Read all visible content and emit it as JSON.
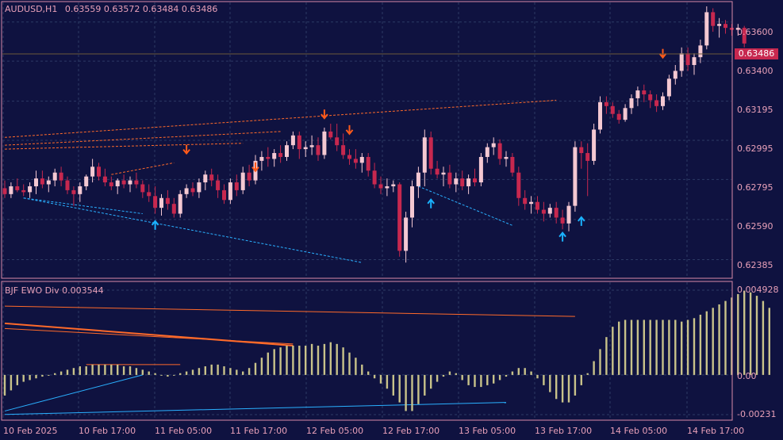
{
  "header": {
    "symbol_label": "AUDUSD,H1",
    "open": "0.63559",
    "high": "0.63572",
    "low": "0.63484",
    "close": "0.63486"
  },
  "current_price": "0.63486",
  "price_axis": [
    "0.63600",
    "0.63400",
    "0.63195",
    "0.62995",
    "0.62795",
    "0.62590",
    "0.62385"
  ],
  "indicator": {
    "label": "BJF EWO Div 0.003544",
    "axis": [
      "0.004928",
      "0.00",
      "-0.00231"
    ]
  },
  "time_axis": [
    "10 Feb 2025",
    "10 Feb 17:00",
    "11 Feb 05:00",
    "11 Feb 17:00",
    "12 Feb 05:00",
    "12 Feb 17:00",
    "13 Feb 05:00",
    "13 Feb 17:00",
    "14 Feb 05:00",
    "14 Feb 17:00"
  ],
  "colors": {
    "background": "#0f1240",
    "grid": "#2c3a64",
    "frame": "#d88aa8",
    "bull_candle": "#f4c8d2",
    "bear_candle": "#c7284f",
    "histogram": "#c8c28a",
    "sell_arrow": "#ff5a1a",
    "buy_arrow": "#1ab2ff",
    "bear_div_line": "#ff6a2a",
    "bull_div_line": "#2ab0ff"
  },
  "chart_data": {
    "type": "candlestick",
    "symbol": "AUDUSD",
    "timeframe": "H1",
    "ylim": [
      0.6231,
      0.6368
    ],
    "candles": [
      [
        0.6275,
        0.6279,
        0.627,
        0.6272
      ],
      [
        0.6272,
        0.6278,
        0.627,
        0.6276
      ],
      [
        0.6276,
        0.628,
        0.6273,
        0.6274
      ],
      [
        0.6274,
        0.6277,
        0.6271,
        0.6273
      ],
      [
        0.6273,
        0.6278,
        0.627,
        0.6276
      ],
      [
        0.6276,
        0.6284,
        0.6272,
        0.628
      ],
      [
        0.628,
        0.6284,
        0.6275,
        0.6277
      ],
      [
        0.6277,
        0.6281,
        0.6273,
        0.6279
      ],
      [
        0.6279,
        0.6285,
        0.6276,
        0.6283
      ],
      [
        0.6283,
        0.6286,
        0.6276,
        0.6279
      ],
      [
        0.6279,
        0.6281,
        0.6272,
        0.6274
      ],
      [
        0.6274,
        0.6276,
        0.6266,
        0.6272
      ],
      [
        0.6272,
        0.6278,
        0.6268,
        0.6276
      ],
      [
        0.6276,
        0.6282,
        0.6274,
        0.6281
      ],
      [
        0.6281,
        0.629,
        0.6278,
        0.6286
      ],
      [
        0.6286,
        0.6288,
        0.6279,
        0.6281
      ],
      [
        0.6281,
        0.6285,
        0.6276,
        0.6278
      ],
      [
        0.6278,
        0.6281,
        0.6274,
        0.6276
      ],
      [
        0.6276,
        0.628,
        0.6272,
        0.6279
      ],
      [
        0.6279,
        0.6282,
        0.6275,
        0.6277
      ],
      [
        0.6277,
        0.6281,
        0.6273,
        0.6279
      ],
      [
        0.6279,
        0.6283,
        0.6275,
        0.6277
      ],
      [
        0.6277,
        0.6279,
        0.627,
        0.6273
      ],
      [
        0.6273,
        0.6277,
        0.6268,
        0.6271
      ],
      [
        0.6271,
        0.6276,
        0.6262,
        0.6265
      ],
      [
        0.6265,
        0.6272,
        0.6261,
        0.627
      ],
      [
        0.627,
        0.6274,
        0.6264,
        0.6267
      ],
      [
        0.6267,
        0.627,
        0.626,
        0.6262
      ],
      [
        0.6262,
        0.6274,
        0.626,
        0.6272
      ],
      [
        0.6272,
        0.6277,
        0.627,
        0.6275
      ],
      [
        0.6275,
        0.6278,
        0.6271,
        0.6273
      ],
      [
        0.6273,
        0.628,
        0.627,
        0.6278
      ],
      [
        0.6278,
        0.6284,
        0.6274,
        0.6282
      ],
      [
        0.6282,
        0.6285,
        0.6276,
        0.6279
      ],
      [
        0.6279,
        0.6282,
        0.627,
        0.6274
      ],
      [
        0.6274,
        0.6277,
        0.6267,
        0.6269
      ],
      [
        0.6269,
        0.628,
        0.6267,
        0.6278
      ],
      [
        0.6278,
        0.6282,
        0.6271,
        0.6274
      ],
      [
        0.6274,
        0.6286,
        0.6272,
        0.6283
      ],
      [
        0.6283,
        0.6287,
        0.6276,
        0.6279
      ],
      [
        0.6279,
        0.6292,
        0.6277,
        0.6289
      ],
      [
        0.6289,
        0.6294,
        0.6284,
        0.6291
      ],
      [
        0.6291,
        0.6296,
        0.6286,
        0.629
      ],
      [
        0.629,
        0.6295,
        0.6286,
        0.6293
      ],
      [
        0.6293,
        0.6297,
        0.6288,
        0.6291
      ],
      [
        0.6291,
        0.6299,
        0.6289,
        0.6297
      ],
      [
        0.6297,
        0.6304,
        0.6295,
        0.6302
      ],
      [
        0.6302,
        0.6304,
        0.629,
        0.6295
      ],
      [
        0.6295,
        0.6299,
        0.6291,
        0.6296
      ],
      [
        0.6296,
        0.6302,
        0.6292,
        0.6297
      ],
      [
        0.6297,
        0.6301,
        0.6289,
        0.6292
      ],
      [
        0.6292,
        0.6306,
        0.629,
        0.6304
      ],
      [
        0.6304,
        0.6308,
        0.63,
        0.6301
      ],
      [
        0.6301,
        0.6308,
        0.6294,
        0.6297
      ],
      [
        0.6297,
        0.6303,
        0.629,
        0.6292
      ],
      [
        0.6292,
        0.6295,
        0.6287,
        0.629
      ],
      [
        0.629,
        0.6295,
        0.6285,
        0.6288
      ],
      [
        0.6288,
        0.6293,
        0.6283,
        0.6291
      ],
      [
        0.6291,
        0.6293,
        0.6281,
        0.6284
      ],
      [
        0.6284,
        0.6288,
        0.6275,
        0.6277
      ],
      [
        0.6277,
        0.6281,
        0.6272,
        0.6275
      ],
      [
        0.6275,
        0.628,
        0.6271,
        0.6276
      ],
      [
        0.6276,
        0.6279,
        0.6273,
        0.6277
      ],
      [
        0.6277,
        0.6278,
        0.624,
        0.6243
      ],
      [
        0.6243,
        0.6263,
        0.6237,
        0.626
      ],
      [
        0.626,
        0.6279,
        0.6255,
        0.6276
      ],
      [
        0.6276,
        0.6286,
        0.627,
        0.6283
      ],
      [
        0.6283,
        0.6305,
        0.6276,
        0.6301
      ],
      [
        0.6301,
        0.6304,
        0.6282,
        0.6285
      ],
      [
        0.6285,
        0.6289,
        0.628,
        0.6282
      ],
      [
        0.6282,
        0.6286,
        0.6276,
        0.6283
      ],
      [
        0.6283,
        0.6287,
        0.6275,
        0.6277
      ],
      [
        0.6277,
        0.6283,
        0.6273,
        0.628
      ],
      [
        0.628,
        0.6284,
        0.6274,
        0.6276
      ],
      [
        0.6276,
        0.6282,
        0.6272,
        0.628
      ],
      [
        0.628,
        0.6285,
        0.6276,
        0.6278
      ],
      [
        0.6278,
        0.6293,
        0.6276,
        0.6291
      ],
      [
        0.6291,
        0.6298,
        0.6288,
        0.6296
      ],
      [
        0.6296,
        0.6301,
        0.6292,
        0.6298
      ],
      [
        0.6298,
        0.63,
        0.6287,
        0.629
      ],
      [
        0.629,
        0.6294,
        0.6286,
        0.6291
      ],
      [
        0.6291,
        0.6293,
        0.6281,
        0.6283
      ],
      [
        0.6283,
        0.6286,
        0.6266,
        0.627
      ],
      [
        0.627,
        0.6274,
        0.6264,
        0.6267
      ],
      [
        0.6267,
        0.6271,
        0.6262,
        0.6268
      ],
      [
        0.6268,
        0.6271,
        0.6262,
        0.6264
      ],
      [
        0.6264,
        0.6268,
        0.6258,
        0.6262
      ],
      [
        0.6262,
        0.6267,
        0.626,
        0.6265
      ],
      [
        0.6265,
        0.6268,
        0.6257,
        0.626
      ],
      [
        0.626,
        0.6264,
        0.6254,
        0.6257
      ],
      [
        0.6257,
        0.6268,
        0.6253,
        0.6266
      ],
      [
        0.6266,
        0.6299,
        0.6263,
        0.6296
      ],
      [
        0.6296,
        0.6299,
        0.6285,
        0.6293
      ],
      [
        0.6293,
        0.6298,
        0.6271,
        0.6289
      ],
      [
        0.6289,
        0.6308,
        0.6287,
        0.6305
      ],
      [
        0.6305,
        0.6322,
        0.6303,
        0.6319
      ],
      [
        0.6319,
        0.6322,
        0.6313,
        0.6317
      ],
      [
        0.6317,
        0.6319,
        0.6311,
        0.6313
      ],
      [
        0.6313,
        0.6315,
        0.6308,
        0.631
      ],
      [
        0.631,
        0.6318,
        0.6309,
        0.6316
      ],
      [
        0.6316,
        0.6323,
        0.6313,
        0.6321
      ],
      [
        0.6321,
        0.6327,
        0.6317,
        0.6325
      ],
      [
        0.6325,
        0.6328,
        0.6319,
        0.6323
      ],
      [
        0.6323,
        0.6325,
        0.6316,
        0.632
      ],
      [
        0.632,
        0.6323,
        0.6314,
        0.6317
      ],
      [
        0.6317,
        0.6324,
        0.6315,
        0.6322
      ],
      [
        0.6322,
        0.6333,
        0.632,
        0.6331
      ],
      [
        0.6331,
        0.6338,
        0.6328,
        0.6335
      ],
      [
        0.6335,
        0.6347,
        0.6332,
        0.6344
      ],
      [
        0.6344,
        0.6347,
        0.6335,
        0.6338
      ],
      [
        0.6338,
        0.6344,
        0.6333,
        0.6342
      ],
      [
        0.6342,
        0.6351,
        0.6339,
        0.6348
      ],
      [
        0.6348,
        0.6368,
        0.6346,
        0.6365
      ],
      [
        0.6365,
        0.6367,
        0.6355,
        0.6358
      ],
      [
        0.6358,
        0.6362,
        0.6352,
        0.6359
      ],
      [
        0.6359,
        0.6361,
        0.6354,
        0.6357
      ],
      [
        0.6357,
        0.6359,
        0.6353,
        0.6356
      ],
      [
        0.6356,
        0.6359,
        0.6353,
        0.6357
      ],
      [
        0.6357,
        0.6358,
        0.6347,
        0.6349
      ]
    ],
    "indicator_series": {
      "name": "BJF EWO Div",
      "ylim": [
        -0.00231,
        0.004928
      ],
      "values": [
        -0.0012,
        -0.0009,
        -0.0006,
        -0.0004,
        -0.0003,
        -0.0002,
        -0.0001,
        0.0,
        0.0001,
        0.0002,
        0.0003,
        0.0004,
        0.0005,
        0.0005,
        0.0006,
        0.0006,
        0.0006,
        0.0006,
        0.0006,
        0.0005,
        0.0005,
        0.0004,
        0.0003,
        0.0002,
        0.0001,
        0.0,
        -0.0001,
        0.0,
        0.0001,
        0.0002,
        0.0003,
        0.0004,
        0.0005,
        0.0006,
        0.0006,
        0.0005,
        0.0004,
        0.0003,
        0.0002,
        0.0004,
        0.0007,
        0.001,
        0.0013,
        0.0015,
        0.0016,
        0.0017,
        0.0017,
        0.0017,
        0.0017,
        0.0018,
        0.0017,
        0.0018,
        0.0019,
        0.0018,
        0.0016,
        0.0013,
        0.001,
        0.0006,
        0.0002,
        -0.0002,
        -0.0005,
        -0.0008,
        -0.0012,
        -0.0016,
        -0.0021,
        -0.0021,
        -0.0017,
        -0.0012,
        -0.0008,
        -0.0004,
        -0.0001,
        0.0002,
        0.0001,
        -0.0003,
        -0.0006,
        -0.0007,
        -0.0007,
        -0.0006,
        -0.0005,
        -0.0003,
        -0.0001,
        0.0002,
        0.0004,
        0.0004,
        0.0002,
        -0.0002,
        -0.0006,
        -0.001,
        -0.0014,
        -0.0016,
        -0.0016,
        -0.0012,
        -0.0006,
        0.0001,
        0.0008,
        0.0015,
        0.0022,
        0.0028,
        0.0031,
        0.0032,
        0.0032,
        0.0032,
        0.0032,
        0.0032,
        0.0032,
        0.0032,
        0.0032,
        0.0032,
        0.0031,
        0.0032,
        0.0033,
        0.0035,
        0.0037,
        0.0039,
        0.0041,
        0.0043,
        0.0045,
        0.0047,
        0.0049,
        0.0048,
        0.0046,
        0.0043,
        0.0039
      ]
    },
    "sell_signals": [
      {
        "index": 40,
        "price": 0.6285
      },
      {
        "index": 51,
        "price": 0.6312
      },
      {
        "index": 55,
        "price": 0.6304
      },
      {
        "index": 29,
        "price": 0.6294
      },
      {
        "index": 105,
        "price": 0.6343
      }
    ],
    "buy_signals": [
      {
        "index": 24,
        "price": 0.6257
      },
      {
        "index": 68,
        "price": 0.6268
      },
      {
        "index": 89,
        "price": 0.6251
      },
      {
        "index": 92,
        "price": 0.6259
      }
    ]
  }
}
